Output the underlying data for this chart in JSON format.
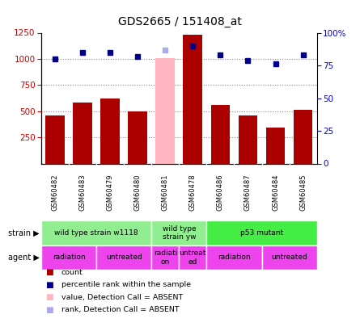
{
  "title": "GDS2665 / 151408_at",
  "samples": [
    "GSM60482",
    "GSM60483",
    "GSM60479",
    "GSM60480",
    "GSM60481",
    "GSM60478",
    "GSM60486",
    "GSM60487",
    "GSM60484",
    "GSM60485"
  ],
  "counts": [
    460,
    580,
    620,
    500,
    null,
    1230,
    560,
    460,
    340,
    510
  ],
  "ranks": [
    80,
    85,
    85,
    82,
    null,
    90,
    83,
    79,
    76,
    83
  ],
  "absent_count": [
    null,
    null,
    null,
    null,
    1010,
    null,
    null,
    null,
    null,
    null
  ],
  "absent_rank": [
    null,
    null,
    null,
    null,
    87,
    null,
    null,
    null,
    null,
    null
  ],
  "ylim_left": [
    0,
    1250
  ],
  "ylim_right": [
    0,
    100
  ],
  "yticks_left": [
    250,
    500,
    750,
    1000,
    1250
  ],
  "yticks_right": [
    0,
    25,
    50,
    75,
    100
  ],
  "strain_groups": [
    {
      "label": "wild type strain w1118",
      "start": 0,
      "end": 4,
      "color": "#90EE90"
    },
    {
      "label": "wild type\nstrain yw",
      "start": 4,
      "end": 6,
      "color": "#90EE90"
    },
    {
      "label": "p53 mutant",
      "start": 6,
      "end": 10,
      "color": "#44EE44"
    }
  ],
  "agent_groups": [
    {
      "label": "radiation",
      "start": 0,
      "end": 2
    },
    {
      "label": "untreated",
      "start": 2,
      "end": 4
    },
    {
      "label": "radiati-\non",
      "start": 4,
      "end": 5
    },
    {
      "label": "untreat-\ned",
      "start": 5,
      "end": 6
    },
    {
      "label": "radiation",
      "start": 6,
      "end": 8
    },
    {
      "label": "untreated",
      "start": 8,
      "end": 10
    }
  ],
  "agent_color": "#EE44EE",
  "bar_color": "#AA0000",
  "absent_bar_color": "#FFB6C1",
  "rank_color": "#00008B",
  "absent_rank_color": "#AAAAEE",
  "grid_color": "#888888",
  "tick_color_left": "#CC0000",
  "tick_color_right": "#0000CC",
  "sample_bg": "#C8C8C8",
  "bg_color": "#FFFFFF"
}
